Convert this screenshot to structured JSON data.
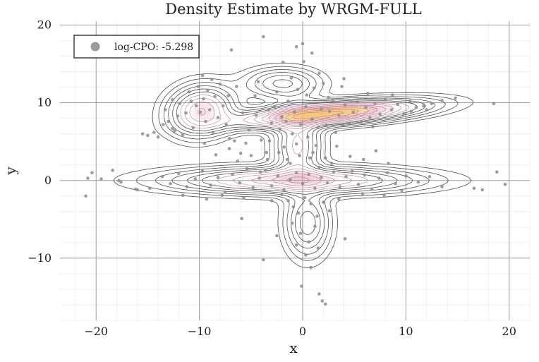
{
  "chart_data": {
    "type": "scatter",
    "title": "Density Estimate by WRGM-FULL",
    "xlabel": "x",
    "ylabel": "y",
    "xlim": [
      -23.5,
      22
    ],
    "ylim": [
      -18,
      20.5
    ],
    "xticks": [
      -20,
      -10,
      0,
      10,
      20
    ],
    "yticks": [
      -10,
      0,
      10,
      20
    ],
    "xtick_labels": [
      "−20",
      "−10",
      "0",
      "10",
      "20"
    ],
    "ytick_labels": [
      "−10",
      "0",
      "10",
      "20"
    ],
    "grid": true,
    "legend": {
      "label": "log-CPO: -5.298",
      "position": "top-left"
    },
    "colors": {
      "points": "#8c8c8c",
      "contour": "#3a3a3a",
      "hot": "#f4c070",
      "warm": "#d98aa0"
    },
    "density_components": [
      {
        "name": "upper-right ridge",
        "mx": 2.5,
        "my": 8.6,
        "sx": 5.2,
        "sy": 1.0,
        "rho": 0.55,
        "w": 0.3
      },
      {
        "name": "upper-left cluster",
        "mx": -9.8,
        "my": 9.0,
        "sx": 1.9,
        "sy": 1.9,
        "rho": 0.1,
        "w": 0.14
      },
      {
        "name": "central band",
        "mx": -1.0,
        "my": 0.0,
        "sx": 7.0,
        "sy": 1.0,
        "rho": 0.0,
        "w": 0.27
      },
      {
        "name": "lower tail",
        "mx": 0.5,
        "my": -5.5,
        "sx": 1.3,
        "sy": 2.6,
        "rho": 0.0,
        "w": 0.07
      },
      {
        "name": "middle column",
        "mx": -0.5,
        "my": 4.5,
        "sx": 1.4,
        "sy": 3.0,
        "rho": 0.0,
        "w": 0.1
      },
      {
        "name": "upper bump",
        "mx": -2.0,
        "my": 12.5,
        "sx": 2.2,
        "sy": 1.2,
        "rho": 0.0,
        "w": 0.05
      }
    ],
    "points": [
      [
        -21,
        -2
      ],
      [
        -20.8,
        0.3
      ],
      [
        -20.4,
        1
      ],
      [
        -19.5,
        0.2
      ],
      [
        -18.4,
        1.3
      ],
      [
        -17.8,
        0
      ],
      [
        -17.6,
        -0.2
      ],
      [
        -16.2,
        -1.1
      ],
      [
        -16.0,
        -1.2
      ],
      [
        -15.5,
        6
      ],
      [
        -15,
        5.8
      ],
      [
        -14.4,
        6.2
      ],
      [
        -14,
        5.6
      ],
      [
        -13.3,
        9.1
      ],
      [
        -13,
        7.6
      ],
      [
        -12.6,
        10.4
      ],
      [
        -12.4,
        6.4
      ],
      [
        -12.1,
        8.3
      ],
      [
        -11.9,
        9.9
      ],
      [
        -11.6,
        5.9
      ],
      [
        -11.3,
        8.7
      ],
      [
        -11,
        11.4
      ],
      [
        -10.8,
        10.2
      ],
      [
        -10.6,
        6.8
      ],
      [
        -10.3,
        9.6
      ],
      [
        -10.1,
        12.1
      ],
      [
        -9.9,
        8.8
      ],
      [
        -9.6,
        10.5
      ],
      [
        -9.4,
        7.6
      ],
      [
        -9.2,
        11.6
      ],
      [
        -9,
        9.1
      ],
      [
        -8.7,
        6.2
      ],
      [
        -8.5,
        10.8
      ],
      [
        -8.2,
        8.1
      ],
      [
        -8,
        12.4
      ],
      [
        -7.7,
        9.6
      ],
      [
        -7.4,
        7.2
      ],
      [
        -7.2,
        10.9
      ],
      [
        -6.9,
        16.8
      ],
      [
        -6.6,
        5.1
      ],
      [
        -9.7,
        13.5
      ],
      [
        -8.8,
        13
      ],
      [
        -6,
        3.5
      ],
      [
        -5.5,
        4.8
      ],
      [
        -5.2,
        6.5
      ],
      [
        -4.5,
        8.4
      ],
      [
        -4.3,
        12.7
      ],
      [
        -3.8,
        18.5
      ],
      [
        -3.5,
        3.6
      ],
      [
        -3.2,
        5.1
      ],
      [
        -3,
        7.4
      ],
      [
        -2.7,
        9.5
      ],
      [
        -2.5,
        11.4
      ],
      [
        -2.2,
        6.6
      ],
      [
        -2,
        8.2
      ],
      [
        -1.8,
        4.3
      ],
      [
        -1.6,
        7.6
      ],
      [
        -1.4,
        10.2
      ],
      [
        -1.2,
        2.2
      ],
      [
        -1,
        6
      ],
      [
        -0.8,
        8.8
      ],
      [
        -0.6,
        4.7
      ],
      [
        -0.5,
        11.7
      ],
      [
        -0.3,
        3.2
      ],
      [
        -0.2,
        7.2
      ],
      [
        0,
        17.6
      ],
      [
        0.1,
        15.3
      ],
      [
        -0.6,
        17.2
      ],
      [
        0.3,
        9.5
      ],
      [
        0.5,
        5.6
      ],
      [
        0.7,
        2.9
      ],
      [
        0.9,
        7.9
      ],
      [
        1.1,
        11.9
      ],
      [
        1.3,
        4.5
      ],
      [
        1.5,
        6.8
      ],
      [
        1.8,
        9.2
      ],
      [
        2.0,
        12.5
      ],
      [
        2.3,
        7.1
      ],
      [
        2.6,
        8.9
      ],
      [
        2.9,
        10.3
      ],
      [
        3.2,
        6.2
      ],
      [
        3.5,
        8.4
      ],
      [
        3.8,
        12.1
      ],
      [
        4.1,
        9.7
      ],
      [
        4.5,
        7.3
      ],
      [
        4.9,
        8.8
      ],
      [
        5.3,
        10.1
      ],
      [
        5.7,
        7.6
      ],
      [
        6.1,
        9.4
      ],
      [
        6.5,
        8.1
      ],
      [
        7,
        9.9
      ],
      [
        7.5,
        8.5
      ],
      [
        8,
        10.4
      ],
      [
        8.6,
        9.1
      ],
      [
        9.2,
        9.8
      ],
      [
        9.8,
        8.6
      ],
      [
        10.4,
        10.2
      ],
      [
        11,
        9.4
      ],
      [
        11.7,
        9.6
      ],
      [
        12.5,
        9.9
      ],
      [
        13.5,
        10.3
      ],
      [
        14.8,
        10.6
      ],
      [
        18.5,
        9.9
      ],
      [
        -14.8,
        -1
      ],
      [
        -13.6,
        0.5
      ],
      [
        -12.8,
        -0.4
      ],
      [
        -12,
        0.9
      ],
      [
        -11.2,
        -0.8
      ],
      [
        -10.4,
        0.2
      ],
      [
        -9.7,
        1.2
      ],
      [
        -8.9,
        -0.6
      ],
      [
        -8.2,
        0.4
      ],
      [
        -7.5,
        -1.5
      ],
      [
        -6.8,
        0.8
      ],
      [
        -6.1,
        -0.3
      ],
      [
        -5.4,
        1.5
      ],
      [
        -4.8,
        -0.9
      ],
      [
        -4.2,
        0.3
      ],
      [
        -3.6,
        1.3
      ],
      [
        -3,
        -0.7
      ],
      [
        -2.4,
        0.6
      ],
      [
        -1.8,
        -1.2
      ],
      [
        -1.2,
        0.1
      ],
      [
        -0.6,
        1
      ],
      [
        0,
        -0.4
      ],
      [
        0.6,
        0.8
      ],
      [
        1.2,
        -1
      ],
      [
        1.8,
        0.4
      ],
      [
        2.4,
        -0.3
      ],
      [
        3,
        1.1
      ],
      [
        3.6,
        -0.8
      ],
      [
        4.2,
        0.5
      ],
      [
        4.8,
        1.2
      ],
      [
        5.4,
        -0.5
      ],
      [
        6,
        0.7
      ],
      [
        6.7,
        -1.1
      ],
      [
        7.4,
        0.3
      ],
      [
        8.2,
        1
      ],
      [
        9,
        -0.4
      ],
      [
        10,
        0.6
      ],
      [
        11.2,
        -0.2
      ],
      [
        12.3,
        0.5
      ],
      [
        13.5,
        -0.8
      ],
      [
        16.6,
        -1
      ],
      [
        17.4,
        -1.2
      ],
      [
        18.8,
        1.1
      ],
      [
        19.6,
        -0.5
      ],
      [
        -2,
        -1.8
      ],
      [
        -1.4,
        -2.6
      ],
      [
        -0.9,
        -3.4
      ],
      [
        -0.4,
        -4.2
      ],
      [
        0.2,
        -2.2
      ],
      [
        0.8,
        -3
      ],
      [
        1.4,
        -4.6
      ],
      [
        2,
        -2.8
      ],
      [
        2.6,
        -3.9
      ],
      [
        -1,
        -5.5
      ],
      [
        -0.2,
        -6.8
      ],
      [
        0.6,
        -7.9
      ],
      [
        1.2,
        -5.9
      ],
      [
        -2.5,
        -7.1
      ],
      [
        -0.6,
        -8.3
      ],
      [
        0.3,
        -9.6
      ],
      [
        1.5,
        -8.7
      ],
      [
        4.1,
        -7.5
      ],
      [
        -5.9,
        -4.9
      ],
      [
        -3.8,
        -10.2
      ],
      [
        -0.1,
        -13.6
      ],
      [
        0.8,
        -11.2
      ],
      [
        1.6,
        -14.6
      ],
      [
        1.9,
        -15.5
      ],
      [
        2.2,
        -15.9
      ],
      [
        -4,
        5.2
      ],
      [
        -5,
        3.2
      ],
      [
        -6.3,
        2.5
      ],
      [
        -7.1,
        4.1
      ],
      [
        -8.4,
        3.3
      ],
      [
        -9.5,
        4.8
      ],
      [
        -3.4,
        2.7
      ],
      [
        -2.3,
        3.6
      ],
      [
        1,
        3.6
      ],
      [
        2.2,
        2.9
      ],
      [
        3.3,
        4.4
      ],
      [
        4.6,
        3.1
      ],
      [
        5.9,
        2.7
      ],
      [
        7.1,
        3.8
      ],
      [
        8.3,
        2.2
      ],
      [
        1.6,
        1.7
      ],
      [
        2.8,
        2.2
      ],
      [
        -1.5,
        2.7
      ],
      [
        -4.1,
        1.1
      ],
      [
        -5.7,
        -2.2
      ],
      [
        -7.8,
        -1.9
      ],
      [
        -9.3,
        -2.4
      ],
      [
        -11.6,
        -1.9
      ],
      [
        -3,
        -2.6
      ],
      [
        3.5,
        -2.4
      ],
      [
        5.8,
        -1.7
      ],
      [
        7.9,
        -2
      ],
      [
        9.6,
        -1.3
      ],
      [
        4,
        13.1
      ],
      [
        1.6,
        13.8
      ],
      [
        -1.1,
        13.2
      ],
      [
        -4.6,
        10.9
      ],
      [
        -6.4,
        12.1
      ],
      [
        -5.8,
        8.7
      ],
      [
        -3.3,
        9.1
      ],
      [
        0.4,
        11
      ],
      [
        -1.9,
        15.2
      ],
      [
        0.9,
        16.4
      ],
      [
        2.5,
        10.7
      ],
      [
        6.3,
        11.2
      ],
      [
        8.7,
        11
      ],
      [
        3.9,
        7.1
      ],
      [
        6.8,
        6.9
      ],
      [
        10.5,
        8.9
      ],
      [
        12,
        9.1
      ],
      [
        -12.6,
        6.7
      ],
      [
        -13.5,
        7.2
      ],
      [
        -7.1,
        5.4
      ]
    ]
  }
}
